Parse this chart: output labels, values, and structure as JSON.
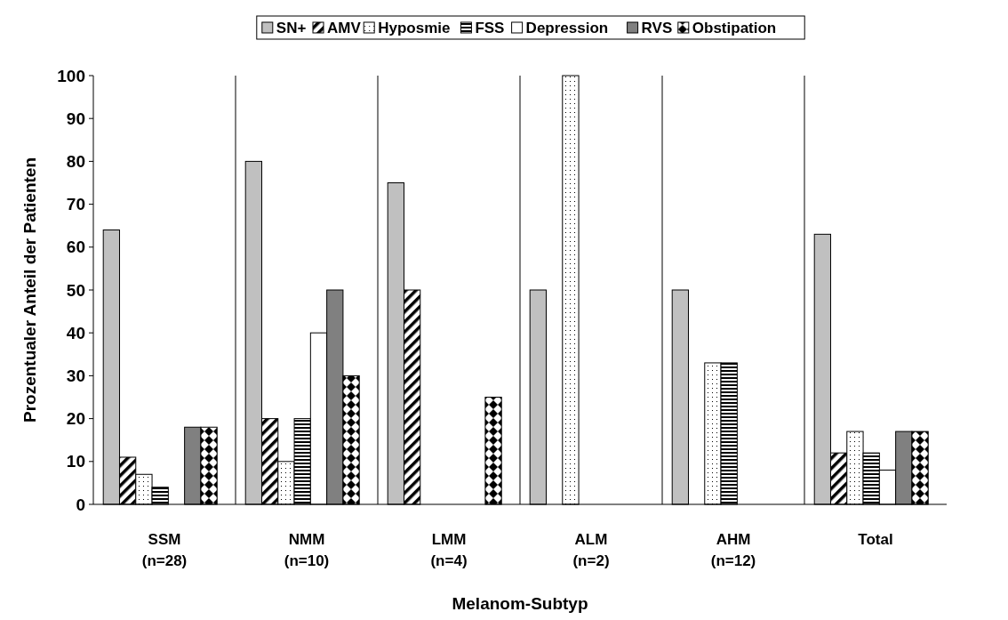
{
  "chart_data": {
    "type": "bar",
    "xlabel": "Melanom-Subtyp",
    "ylabel": "Prozentualer Anteil der Patienten",
    "categories": [
      "SSM\n(n=28)",
      "NMM\n(n=10)",
      "LMM\n(n=4)",
      "ALM\n(n=2)",
      "AHM\n(n=12)",
      "Total"
    ],
    "series": [
      {
        "name": "SN+",
        "color": "#c0c0c0",
        "values": [
          64,
          80,
          75,
          50,
          50,
          63
        ]
      },
      {
        "name": "AMV",
        "color": "#000000",
        "values": [
          11,
          20,
          50,
          0,
          0,
          12
        ]
      },
      {
        "name": "Hyposmie",
        "color": "#000000",
        "values": [
          7,
          10,
          0,
          100,
          33,
          17
        ]
      },
      {
        "name": "FSS",
        "color": "#000000",
        "values": [
          4,
          20,
          0,
          0,
          33,
          12
        ]
      },
      {
        "name": "Depression",
        "color": "#ffffff",
        "values": [
          0,
          40,
          0,
          0,
          0,
          8
        ]
      },
      {
        "name": "RVS",
        "color": "#808080",
        "values": [
          18,
          50,
          0,
          0,
          0,
          17
        ]
      },
      {
        "name": "Obstipation",
        "color": "#000000",
        "values": [
          18,
          30,
          25,
          0,
          0,
          17
        ]
      }
    ],
    "ylim": [
      0,
      100
    ],
    "yticks": [
      0,
      10,
      20,
      30,
      40,
      50,
      60,
      70,
      80,
      90,
      100
    ],
    "grid": "x",
    "legend": "top"
  }
}
